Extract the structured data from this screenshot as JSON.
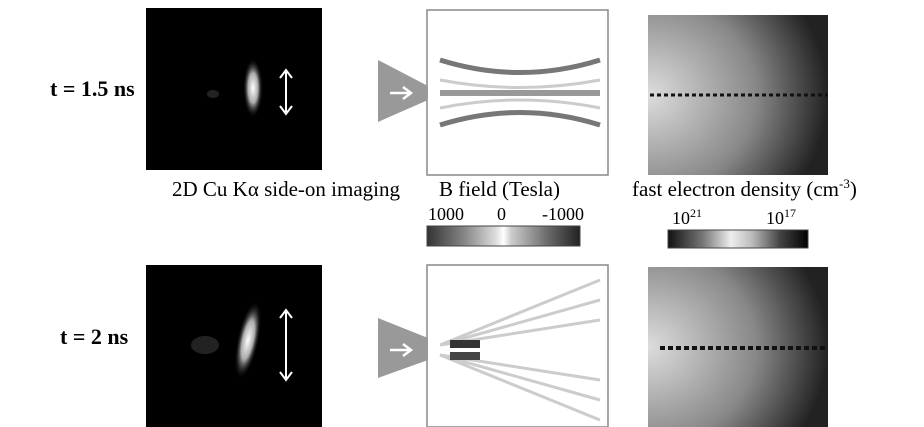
{
  "rows": [
    {
      "label": "t = 1.5 ns"
    },
    {
      "label": "t = 2 ns"
    }
  ],
  "captions": {
    "imaging": "2D Cu Kα side-on imaging",
    "bfield": "B field (Tesla)",
    "density": {
      "text": "fast electron density (cm",
      "sup": "-3",
      "after": ")"
    }
  },
  "bfield_scale": {
    "left": "1000",
    "middle": "0",
    "right": "-1000"
  },
  "density_scale": {
    "left": {
      "base": "10",
      "exp": "21"
    },
    "right": {
      "base": "10",
      "exp": "17"
    }
  }
}
